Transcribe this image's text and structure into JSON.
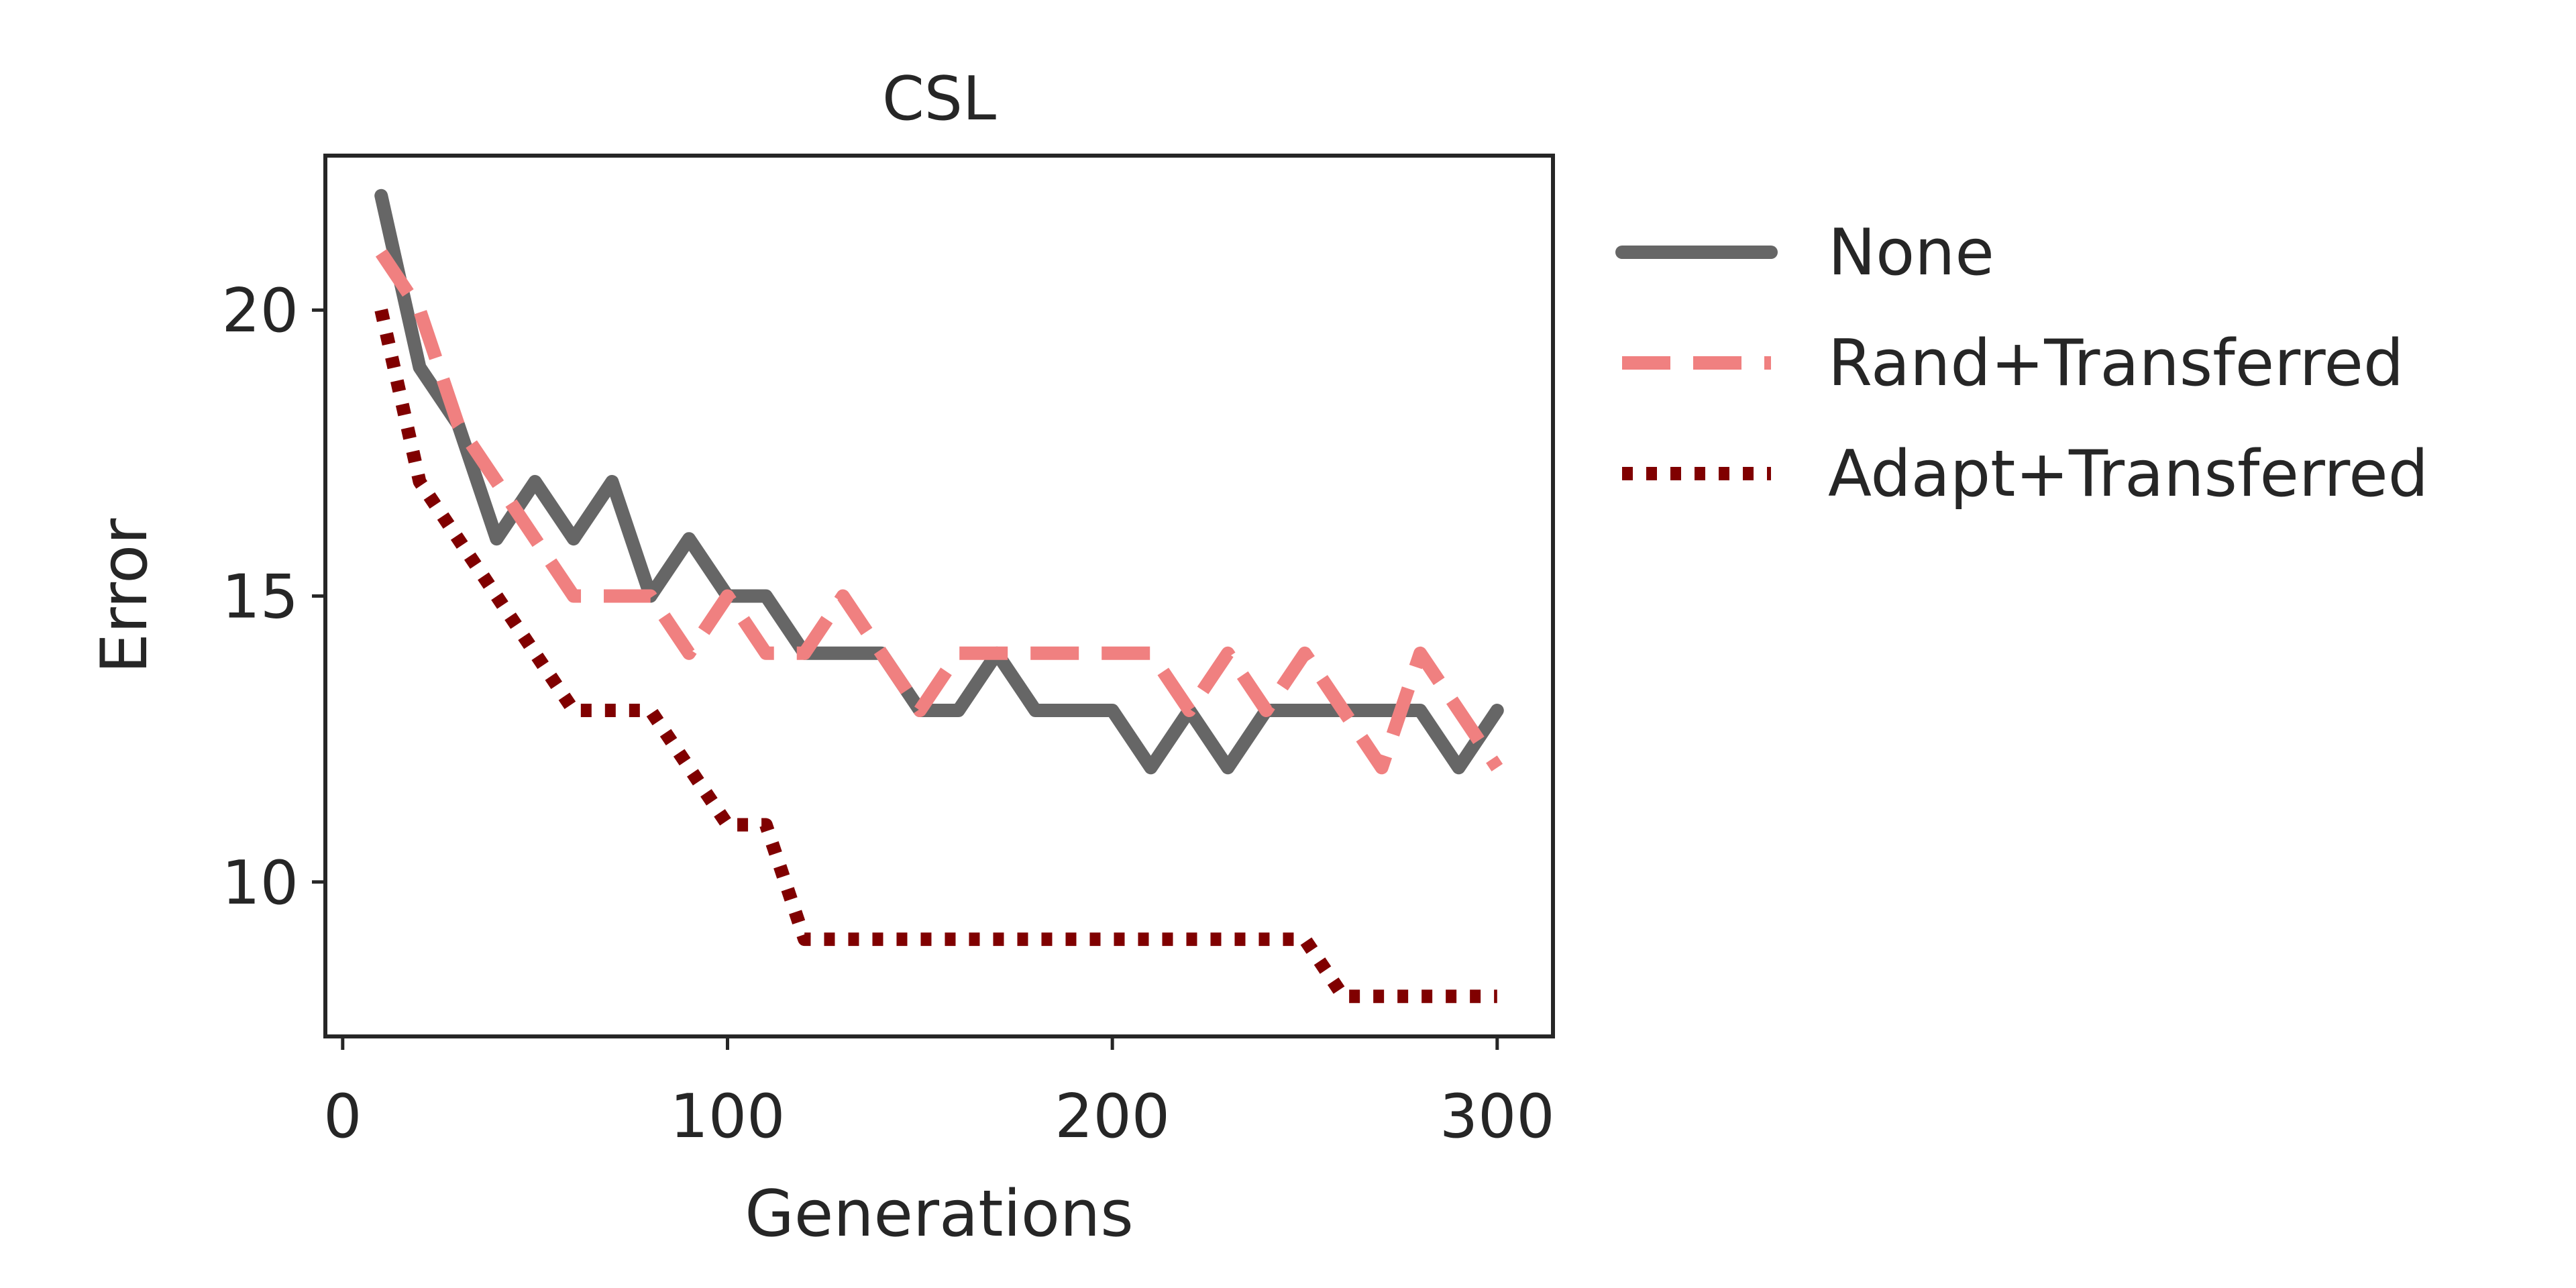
{
  "chart_data": {
    "type": "line",
    "title": "CSL",
    "xlabel": "Generations",
    "ylabel": "Error",
    "xlim": [
      -4.5,
      314.5
    ],
    "ylim": [
      7.3,
      22.7
    ],
    "xticks": [
      0,
      100,
      200,
      300
    ],
    "yticks": [
      10,
      15,
      20
    ],
    "grid": false,
    "legend_position": "outside right",
    "x": [
      10,
      20,
      30,
      40,
      50,
      60,
      70,
      80,
      90,
      100,
      110,
      120,
      130,
      140,
      150,
      160,
      170,
      180,
      190,
      200,
      210,
      220,
      230,
      240,
      250,
      260,
      270,
      280,
      290,
      300
    ],
    "series": [
      {
        "name": "None",
        "style": "solid",
        "color": "#666666",
        "values": [
          22,
          19,
          18,
          16,
          17,
          16,
          17,
          15,
          16,
          15,
          15,
          14,
          14,
          14,
          13,
          13,
          14,
          13,
          13,
          13,
          12,
          13,
          12,
          13,
          13,
          13,
          13,
          13,
          12,
          13
        ]
      },
      {
        "name": "Rand+Transferred",
        "style": "dashed",
        "color": "#f08080",
        "values": [
          21,
          20,
          18,
          17,
          16,
          15,
          15,
          15,
          14,
          15,
          14,
          14,
          15,
          14,
          13,
          14,
          14,
          14,
          14,
          14,
          14,
          13,
          14,
          13,
          14,
          13,
          12,
          14,
          13,
          12
        ]
      },
      {
        "name": "Adapt+Transferred",
        "style": "dotted",
        "color": "#800000",
        "values": [
          20,
          17,
          16,
          15,
          14,
          13,
          13,
          13,
          12,
          11,
          11,
          9,
          9,
          9,
          9,
          9,
          9,
          9,
          9,
          9,
          9,
          9,
          9,
          9,
          9,
          8,
          8,
          8,
          8,
          8
        ]
      }
    ]
  }
}
